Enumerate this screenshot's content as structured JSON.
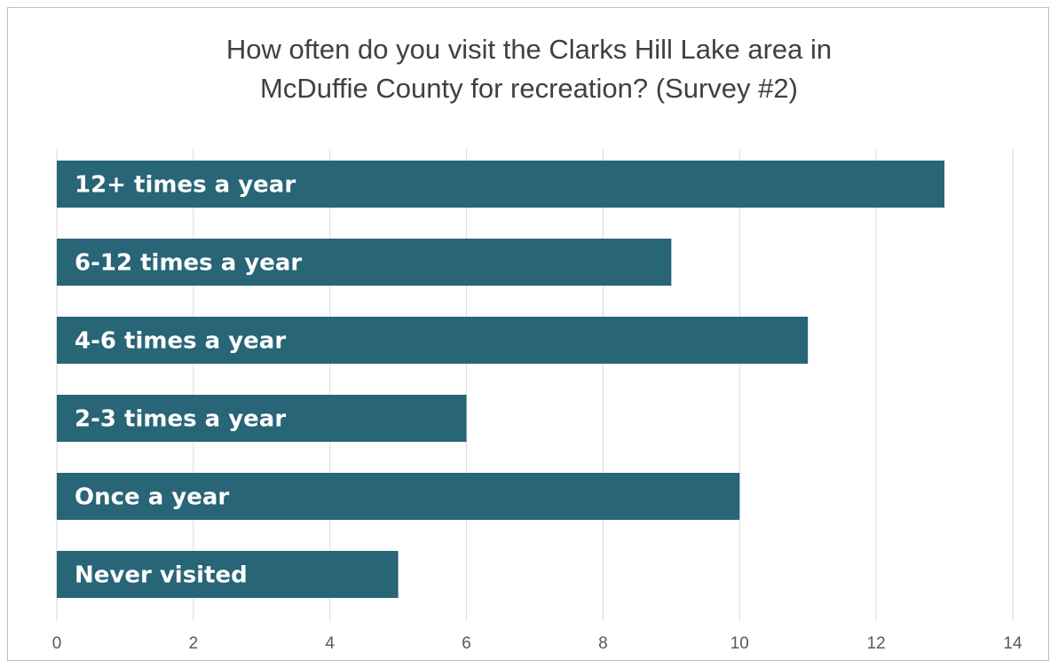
{
  "chart_data": {
    "type": "bar",
    "orientation": "horizontal",
    "title_lines": [
      "How often do you visit the Clarks Hill Lake area in",
      "McDuffie County for recreation? (Survey #2)"
    ],
    "categories": [
      "12+ times a year",
      "6-12 times a year",
      "4-6 times a year",
      "2-3 times a year",
      "Once a year",
      "Never visited"
    ],
    "values": [
      13,
      9,
      11,
      6,
      10,
      5
    ],
    "xlim": [
      0,
      14
    ],
    "x_ticks": [
      "0",
      "2",
      "4",
      "6",
      "8",
      "10",
      "12",
      "14"
    ],
    "bar_color": "#276577",
    "grid": "vertical",
    "legend": "none",
    "labels_inside_bars": true
  }
}
